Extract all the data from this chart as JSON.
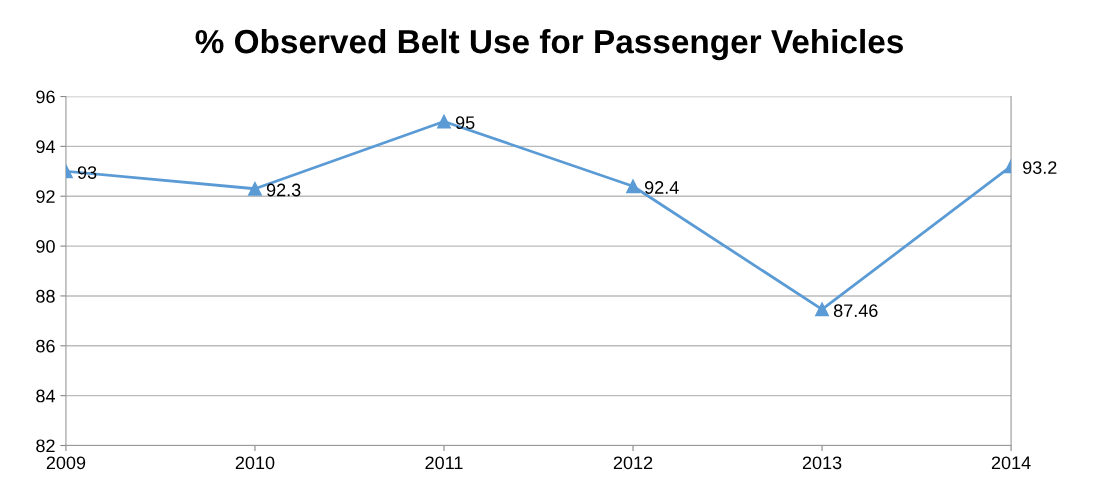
{
  "chart_data": {
    "type": "line",
    "title": "% Observed Belt Use for Passenger Vehicles",
    "categories": [
      "2009",
      "2010",
      "2011",
      "2012",
      "2013",
      "2014"
    ],
    "series": [
      {
        "color": "#5b9bd5",
        "values": [
          93,
          92.3,
          95,
          92.4,
          87.46,
          93.2
        ]
      }
    ],
    "ylim": [
      82,
      96
    ],
    "yticks": [
      82,
      84,
      86,
      88,
      90,
      92,
      94,
      96
    ],
    "grid": "y",
    "marker": "triangle",
    "line_style": "solid",
    "data_labels": true
  }
}
